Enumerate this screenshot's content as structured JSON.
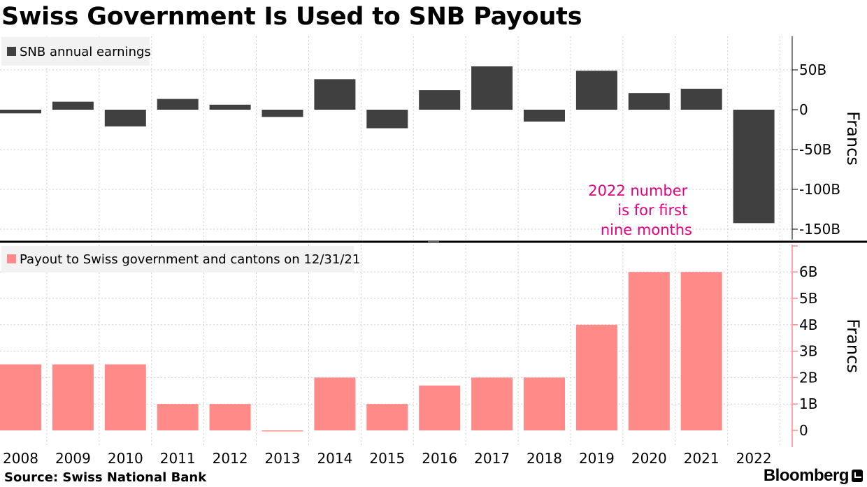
{
  "header": {
    "title": "Swiss Government Is Used to SNB Payouts"
  },
  "footer": {
    "source": "Source: Swiss National Bank",
    "brand": "Bloomberg"
  },
  "colors": {
    "earnings_bar": "#404040",
    "payout_bar": "#ff8a87",
    "annotation": "#e6007e",
    "axis_line": "#ff8a87"
  },
  "chart_data": [
    {
      "type": "bar",
      "categories": [
        "2008",
        "2009",
        "2010",
        "2011",
        "2012",
        "2013",
        "2014",
        "2015",
        "2016",
        "2017",
        "2018",
        "2019",
        "2020",
        "2021",
        "2022"
      ],
      "series": [
        {
          "name": "SNB annual earnings",
          "values": [
            -4.6,
            10,
            -21,
            13.5,
            6.3,
            -9.1,
            38.3,
            -23.3,
            24.5,
            54.4,
            -14.9,
            48.9,
            20.9,
            26.3,
            -142.4
          ]
        }
      ],
      "ylabel": "Francs",
      "ylim": [
        -155,
        90
      ],
      "yticks": [
        50,
        0,
        -50,
        -100,
        -150
      ],
      "ytick_labels": [
        "50B",
        "0",
        "-50B",
        "-100B",
        "-150B"
      ],
      "annotation": {
        "lines": [
          "2022 number",
          "is for first",
          "nine months"
        ]
      },
      "legend": "top-left",
      "grid": true
    },
    {
      "type": "bar",
      "categories": [
        "2008",
        "2009",
        "2010",
        "2011",
        "2012",
        "2013",
        "2014",
        "2015",
        "2016",
        "2017",
        "2018",
        "2019",
        "2020",
        "2021",
        "2022"
      ],
      "series": [
        {
          "name": "Payout to Swiss government and cantons on 12/31/21",
          "values": [
            2.5,
            2.5,
            2.5,
            1,
            1,
            0,
            2,
            1,
            1.7,
            2,
            2,
            4,
            6,
            6,
            null
          ]
        }
      ],
      "ylabel": "Francs",
      "ylim": [
        -0.6,
        6.9
      ],
      "yticks": [
        6,
        5,
        4,
        3,
        2,
        1,
        0
      ],
      "ytick_labels": [
        "6B",
        "5B",
        "4B",
        "3B",
        "2B",
        "1B",
        "0"
      ],
      "legend": "top-left",
      "grid": true
    }
  ]
}
